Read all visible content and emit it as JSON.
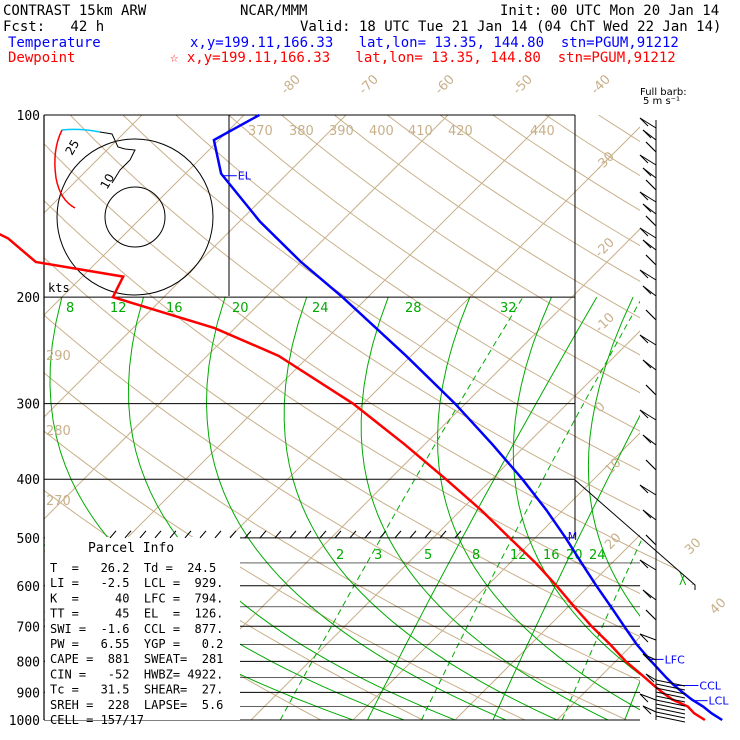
{
  "header": {
    "model": "CONTRAST 15km ARW",
    "center": "NCAR/MMM",
    "init": "Init: 00 UTC Mon 20 Jan 14",
    "fcst": "Fcst:   42 h",
    "valid": "Valid: 18 UTC Tue 21 Jan 14 (04 ChT Wed 22 Jan 14)",
    "temp_label": "Temperature",
    "temp_loc": "x,y=199.11,166.33   lat,lon= 13.35, 144.80  stn=PGUM,91212",
    "dew_label": "Dewpoint",
    "dew_loc": "☆ x,y=199.11,166.33   lat,lon= 13.35, 144.80  stn=PGUM,91212",
    "barb_title1": "Full barb:",
    "barb_title2": "5 m s⁻¹"
  },
  "colors": {
    "temperature": "#0000ff",
    "dewpoint": "#ff0000",
    "isotherm": "#c8b08a",
    "mixing_ratio": "#00aa00",
    "hodograph_low": "#00c8ff"
  },
  "chart_data": {
    "type": "line",
    "title": "CONTRAST 15km ARW",
    "y_axis": "pressure",
    "y_scale": "log",
    "ylim": [
      1000,
      100
    ],
    "pressure_labels": [
      "100",
      "200",
      "300",
      "400",
      "500",
      "600",
      "700",
      "800",
      "900",
      "1000"
    ],
    "pressure_levels": [
      100,
      200,
      300,
      400,
      500,
      600,
      700,
      800,
      900,
      1000
    ],
    "isotherm_labels": [
      "-80",
      "-70",
      "-60",
      "-50",
      "-40",
      "-30",
      "-20",
      "-10",
      "0",
      "10",
      "20",
      "30",
      "40"
    ],
    "theta_labels": [
      "370",
      "380",
      "390",
      "400",
      "410",
      "420",
      "440",
      "290",
      "280",
      "270"
    ],
    "mixing_ratio_labels_upper": [
      "8",
      "12",
      "16",
      "20",
      "24",
      "28",
      "32"
    ],
    "mixing_ratio_labels_lower": [
      "2",
      "3",
      "5",
      "8",
      "12",
      "16",
      "20",
      "24"
    ],
    "series": [
      {
        "name": "Temperature",
        "pressure": [
          1000,
          975,
          950,
          925,
          900,
          875,
          850,
          800,
          750,
          700,
          650,
          600,
          550,
          500,
          450,
          400,
          350,
          300,
          250,
          200,
          175,
          150,
          125,
          110,
          100
        ],
        "temperature": [
          26.2,
          24.5,
          23.0,
          21.2,
          19.6,
          18.0,
          16.5,
          13.5,
          10.4,
          7.4,
          4.2,
          0.7,
          -3.0,
          -7.0,
          -11.6,
          -17.0,
          -23.4,
          -31.0,
          -40.5,
          -52.5,
          -60.0,
          -68.0,
          -76.5,
          -80.5,
          -78.5
        ]
      },
      {
        "name": "Dewpoint",
        "pressure": [
          1000,
          975,
          950,
          925,
          900,
          875,
          850,
          800,
          750,
          700,
          650,
          600,
          550,
          500,
          450,
          400,
          350,
          300,
          250,
          225,
          200,
          185,
          175,
          160,
          150,
          140,
          125,
          110,
          100
        ],
        "temperature": [
          24.5,
          22.8,
          21.5,
          19.3,
          17.6,
          16.0,
          14.4,
          11.0,
          7.8,
          4.2,
          0.6,
          -3.2,
          -7.5,
          -12.5,
          -18.0,
          -24.5,
          -32.0,
          -41.0,
          -53.0,
          -62.0,
          -75.0,
          -76.0,
          -86.0,
          -91.0,
          -96.0,
          -102.0,
          -106.0,
          -107.0,
          -105.0
        ]
      }
    ],
    "levels": [
      {
        "label": "EL",
        "pressure": 126
      },
      {
        "label": "LFC",
        "pressure": 794
      },
      {
        "label": "CCL",
        "pressure": 877
      },
      {
        "label": "LCL",
        "pressure": 929
      },
      {
        "label": "M",
        "pressure": 500
      }
    ],
    "hodograph": {
      "speed_unit": "kts",
      "ring_labels": [
        "25",
        "10"
      ],
      "low_level_color": "cyan",
      "upper_color": "red"
    },
    "wind_barb_title": "Full barb: 5 m s⁻¹",
    "grid": true
  },
  "parcel": {
    "title": "Parcel Info",
    "lines": [
      "T  =   26.2  Td =  24.5",
      "LI =   -2.5  LCL =  929.",
      "K  =     40  LFC =  794.",
      "TT =     45  EL  =  126.",
      "SWI =  -1.6  CCL =  877.",
      "PW =   6.55  YGP =   0.2",
      "CAPE =  881  SWEAT=  281",
      "CIN =   -52  HWBZ= 4922.",
      "Tc =   31.5  SHEAR=  27.",
      "SREH =  228  LAPSE=  5.6",
      "CELL = 157/17"
    ]
  }
}
